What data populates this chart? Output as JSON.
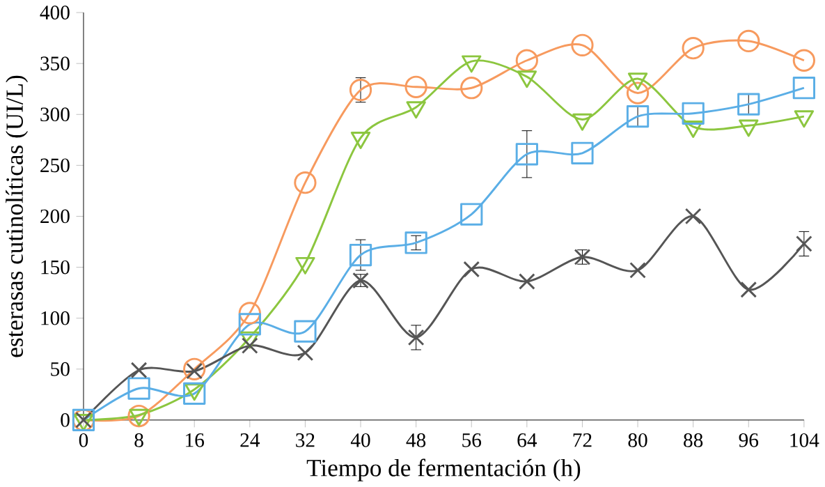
{
  "chart_data": {
    "type": "line",
    "xlabel": "Tiempo de fermentación (h)",
    "ylabel": "esterasas cutinolíticas (UI/L)",
    "x": [
      0,
      8,
      16,
      24,
      32,
      40,
      48,
      56,
      64,
      72,
      80,
      88,
      96,
      104
    ],
    "xlim": [
      0,
      104
    ],
    "xticks": [
      0,
      8,
      16,
      24,
      32,
      40,
      48,
      56,
      64,
      72,
      80,
      88,
      96,
      104
    ],
    "ylim": [
      0,
      400
    ],
    "yticks": [
      0,
      50,
      100,
      150,
      200,
      250,
      300,
      350,
      400
    ],
    "series": [
      {
        "color": "#f79a5e",
        "marker": "circle",
        "values": [
          0,
          4,
          50,
          105,
          233,
          324,
          327,
          326,
          353,
          368,
          321,
          365,
          372,
          353
        ],
        "errors": [
          null,
          null,
          null,
          null,
          null,
          12,
          null,
          null,
          null,
          null,
          null,
          null,
          null,
          null
        ]
      },
      {
        "color": "#8cc63f",
        "marker": "triangle",
        "values": [
          0,
          5,
          30,
          81,
          154,
          277,
          307,
          352,
          337,
          295,
          335,
          288,
          289,
          298
        ]
      },
      {
        "color": "#5aaee6",
        "marker": "square",
        "values": [
          0,
          31,
          26,
          94,
          87,
          162,
          174,
          202,
          261,
          262,
          298,
          301,
          310,
          326
        ],
        "errors": [
          null,
          null,
          null,
          null,
          null,
          15,
          7,
          null,
          23,
          null,
          10,
          null,
          10,
          null
        ]
      },
      {
        "color": "#555555",
        "marker": "cross",
        "values": [
          0,
          49,
          48,
          73,
          66,
          137,
          81,
          148,
          136,
          160,
          147,
          200,
          128,
          173
        ],
        "errors": [
          null,
          null,
          null,
          null,
          null,
          6,
          12,
          null,
          null,
          7,
          null,
          null,
          null,
          12
        ]
      }
    ]
  }
}
